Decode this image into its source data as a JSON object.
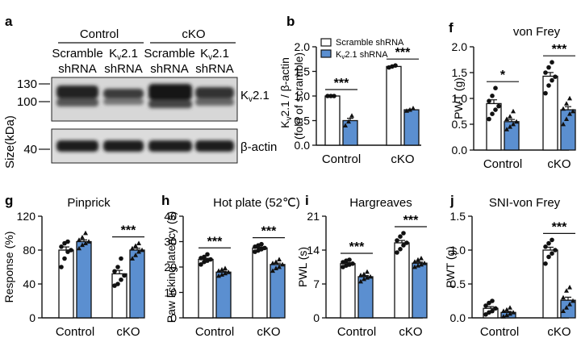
{
  "panels": {
    "a": {
      "letter": "a",
      "groups": [
        "Control",
        "cKO"
      ],
      "lanes": [
        "Scramble",
        "shRNA",
        "K",
        "v",
        "2.1",
        "shRNA",
        "Scramble",
        "shRNA",
        "K",
        "v",
        "2.1",
        "shRNA"
      ],
      "markers_top": [
        "130",
        "100"
      ],
      "markers_bottom": [
        "40"
      ],
      "ylabel": "Size(kDa)",
      "band_top": [
        "K",
        "v",
        "2.1"
      ],
      "band_bottom": "β-actin"
    }
  },
  "chart_data": [
    {
      "id": "b",
      "letter": "b",
      "type": "bar",
      "title": "",
      "ylabel_parts": [
        "K",
        "v",
        "2.1 / β-actin"
      ],
      "ylabel2": "(fold of scramble)",
      "ylim": [
        0,
        2.0
      ],
      "yticks": [
        "0.0",
        "0.5",
        "1.0",
        "1.5",
        "2.0"
      ],
      "categories": [
        "Control",
        "cKO"
      ],
      "legend": [
        {
          "name": "Scramble shRNA"
        },
        {
          "name_parts": [
            "K",
            "v",
            "2.1 shRNA"
          ]
        }
      ],
      "series": [
        {
          "name": "Scramble shRNA",
          "values": [
            1.0,
            1.6
          ],
          "points": [
            [
              1.0,
              1.0,
              1.0
            ],
            [
              1.58,
              1.6,
              1.62
            ]
          ]
        },
        {
          "name": "Kv2.1 shRNA",
          "values": [
            0.5,
            0.72
          ],
          "points": [
            [
              0.4,
              0.48,
              0.6
            ],
            [
              0.7,
              0.72,
              0.75
            ]
          ]
        }
      ],
      "sig": [
        "***",
        "***"
      ]
    },
    {
      "id": "f",
      "letter": "f",
      "type": "bar",
      "title": "von Frey",
      "ylabel": "PWT (g)",
      "ylim": [
        0,
        2.0
      ],
      "yticks": [
        "0.0",
        "0.5",
        "1.0",
        "1.5",
        "2.0"
      ],
      "categories": [
        "Control",
        "cKO"
      ],
      "series": [
        {
          "values": [
            0.9,
            1.43
          ],
          "points": [
            [
              0.6,
              0.7,
              0.78,
              0.85,
              0.95,
              1.05,
              1.2
            ],
            [
              1.1,
              1.25,
              1.35,
              1.42,
              1.5,
              1.6,
              1.7
            ]
          ]
        },
        {
          "values": [
            0.55,
            0.78
          ],
          "points": [
            [
              0.4,
              0.45,
              0.5,
              0.55,
              0.6,
              0.65,
              0.75
            ],
            [
              0.5,
              0.6,
              0.7,
              0.75,
              0.8,
              0.9,
              1.0
            ]
          ]
        }
      ],
      "sig": [
        "*",
        "***"
      ]
    },
    {
      "id": "g",
      "letter": "g",
      "type": "bar",
      "title": "Pinprick",
      "ylabel": "Response (%)",
      "ylim": [
        0,
        120
      ],
      "yticks": [
        "0",
        "40",
        "80",
        "120"
      ],
      "categories": [
        "Control",
        "cKO"
      ],
      "series": [
        {
          "values": [
            80,
            52
          ],
          "points": [
            [
              60,
              70,
              78,
              80,
              84,
              88,
              90
            ],
            [
              38,
              40,
              45,
              50,
              55,
              60,
              70
            ]
          ]
        },
        {
          "values": [
            90,
            80
          ],
          "points": [
            [
              82,
              86,
              88,
              90,
              92,
              95,
              100
            ],
            [
              70,
              74,
              78,
              80,
              82,
              85,
              88
            ]
          ]
        }
      ],
      "sig": [
        null,
        "***"
      ]
    },
    {
      "id": "h",
      "letter": "h",
      "type": "bar",
      "title": "Hot plate (52℃)",
      "ylabel": "Paw licking latency (s)",
      "ylim": [
        0,
        40
      ],
      "yticks": [
        "0",
        "10",
        "20",
        "30",
        "40"
      ],
      "categories": [
        "Control",
        "cKO"
      ],
      "series": [
        {
          "values": [
            23,
            27.5
          ],
          "points": [
            [
              21,
              22,
              22.5,
              23,
              23.5,
              24,
              25
            ],
            [
              26,
              26.5,
              27,
              27.5,
              28,
              28.5,
              29
            ]
          ]
        },
        {
          "values": [
            18,
            21
          ],
          "points": [
            [
              16.5,
              17,
              17.5,
              18,
              18.5,
              19,
              19.5
            ],
            [
              18.5,
              19.5,
              20,
              21,
              21.5,
              22,
              23
            ]
          ]
        }
      ],
      "sig": [
        "***",
        "***"
      ]
    },
    {
      "id": "i",
      "letter": "i",
      "type": "bar",
      "title": "Hargreaves",
      "ylabel": "PWL (s)",
      "ylim": [
        0,
        21
      ],
      "yticks": [
        "0",
        "7",
        "14",
        "21"
      ],
      "categories": [
        "Control",
        "cKO"
      ],
      "series": [
        {
          "values": [
            11.2,
            15.5
          ],
          "points": [
            [
              10.5,
              10.8,
              11,
              11.2,
              11.5,
              11.8,
              12
            ],
            [
              13.5,
              14.2,
              15,
              15.5,
              16,
              16.8,
              17.5
            ]
          ]
        },
        {
          "values": [
            8.5,
            11.3
          ],
          "points": [
            [
              7.5,
              8,
              8.3,
              8.5,
              8.8,
              9,
              9.5
            ],
            [
              10.5,
              10.8,
              11,
              11.3,
              11.6,
              12,
              12.3
            ]
          ]
        }
      ],
      "sig": [
        "***",
        "***"
      ]
    },
    {
      "id": "j",
      "letter": "j",
      "type": "bar",
      "title": "SNI-von Frey",
      "ylabel": "PWT (g)",
      "ylim": [
        0,
        1.5
      ],
      "yticks": [
        "0.0",
        "0.5",
        "1.0",
        "1.5"
      ],
      "categories": [
        "Control",
        "cKO"
      ],
      "series": [
        {
          "values": [
            0.14,
            1.0
          ],
          "points": [
            [
              0.05,
              0.08,
              0.1,
              0.14,
              0.18,
              0.22,
              0.25
            ],
            [
              0.8,
              0.9,
              0.95,
              1.0,
              1.05,
              1.1,
              1.15
            ]
          ]
        },
        {
          "values": [
            0.08,
            0.26
          ],
          "points": [
            [
              0.02,
              0.04,
              0.06,
              0.08,
              0.1,
              0.12,
              0.15
            ],
            [
              0.1,
              0.15,
              0.2,
              0.25,
              0.3,
              0.4,
              0.45
            ]
          ]
        }
      ],
      "sig": [
        null,
        "***"
      ]
    }
  ],
  "colors": {
    "filled": "#5b8fd0",
    "axis": "#111111",
    "blot_bg": "#dcdcdc",
    "band": "#1a1a1a"
  }
}
